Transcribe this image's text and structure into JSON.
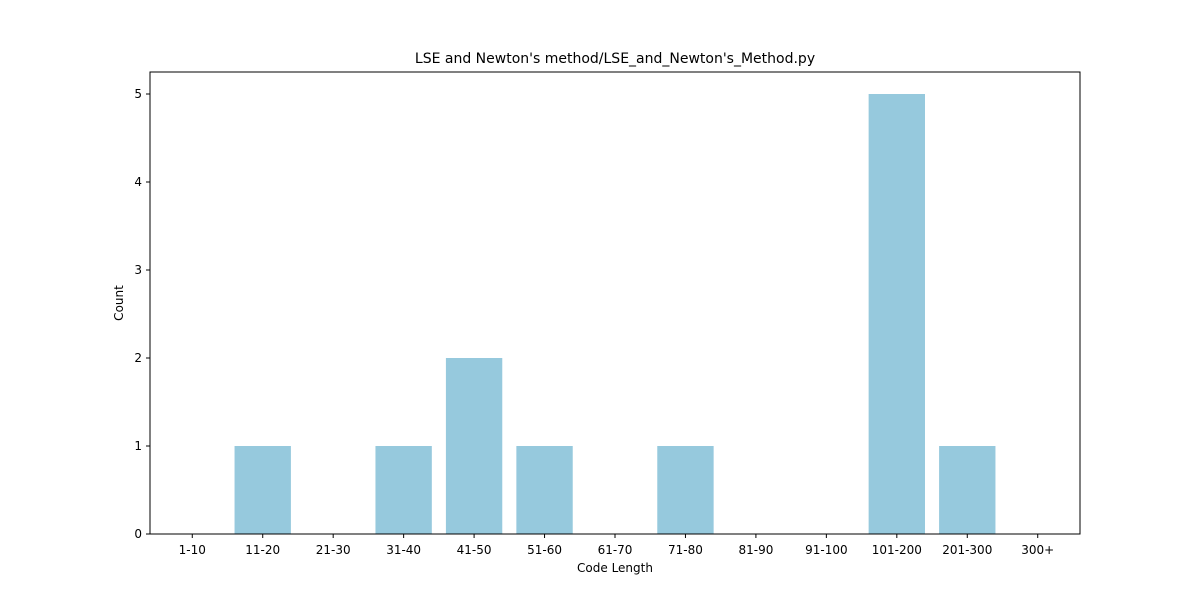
{
  "chart_data": {
    "type": "bar",
    "title": "LSE and Newton's method/LSE_and_Newton's_Method.py",
    "xlabel": "Code Length",
    "ylabel": "Count",
    "categories": [
      "1-10",
      "11-20",
      "21-30",
      "31-40",
      "41-50",
      "51-60",
      "61-70",
      "71-80",
      "81-90",
      "91-100",
      "101-200",
      "201-300",
      "300+"
    ],
    "values": [
      0,
      1,
      0,
      1,
      2,
      1,
      0,
      1,
      0,
      0,
      5,
      1,
      0
    ],
    "ylim": [
      0,
      5.25
    ],
    "yticks": [
      0,
      1,
      2,
      3,
      4,
      5
    ],
    "grid": false,
    "bar_color": "#96c9dd"
  }
}
